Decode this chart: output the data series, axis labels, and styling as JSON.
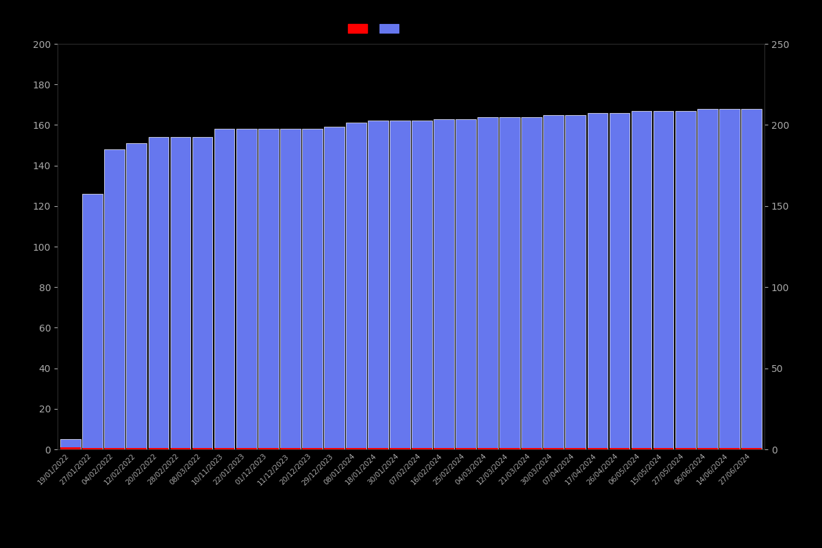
{
  "dates": [
    "19/01/2022",
    "27/01/2022",
    "04/02/2022",
    "12/02/2022",
    "20/02/2022",
    "28/02/2022",
    "08/03/2022",
    "10/11/2023",
    "22/01/2023",
    "01/12/2023",
    "11/12/2023",
    "20/12/2023",
    "29/12/2023",
    "08/01/2024",
    "18/01/2024",
    "30/01/2024",
    "07/02/2024",
    "16/02/2024",
    "25/02/2024",
    "04/03/2024",
    "12/03/2024",
    "21/03/2024",
    "30/03/2024",
    "07/04/2024",
    "17/04/2024",
    "26/04/2024",
    "06/05/2024",
    "15/05/2024",
    "27/05/2024",
    "06/06/2024",
    "14/06/2024",
    "27/06/2024"
  ],
  "blue_values": [
    5,
    126,
    148,
    151,
    154,
    154,
    154,
    158,
    158,
    158,
    158,
    158,
    159,
    161,
    162,
    162,
    162,
    163,
    163,
    164,
    164,
    164,
    165,
    165,
    166,
    166,
    167,
    167,
    167,
    168,
    168,
    168
  ],
  "red_values": [
    1,
    0.8,
    0.8,
    0.8,
    0.8,
    0.8,
    0.8,
    0.8,
    0.8,
    0.8,
    0.8,
    0.8,
    0.8,
    0.8,
    0.8,
    0.8,
    0.8,
    0.8,
    0.8,
    0.8,
    0.8,
    0.8,
    0.8,
    0.8,
    0.8,
    0.8,
    0.8,
    0.8,
    0.8,
    0.8,
    0.8,
    0.8
  ],
  "blue_color": "#6677ee",
  "red_color": "#ff0000",
  "background_color": "#000000",
  "text_color": "#aaaaaa",
  "left_ylim": [
    0,
    200
  ],
  "right_ylim": [
    0,
    250
  ],
  "left_yticks": [
    0,
    20,
    40,
    60,
    80,
    100,
    120,
    140,
    160,
    180,
    200
  ],
  "right_yticks": [
    0,
    50,
    100,
    150,
    200,
    250
  ],
  "bar_width": 0.93,
  "figsize": [
    12,
    8
  ],
  "dpi": 100
}
